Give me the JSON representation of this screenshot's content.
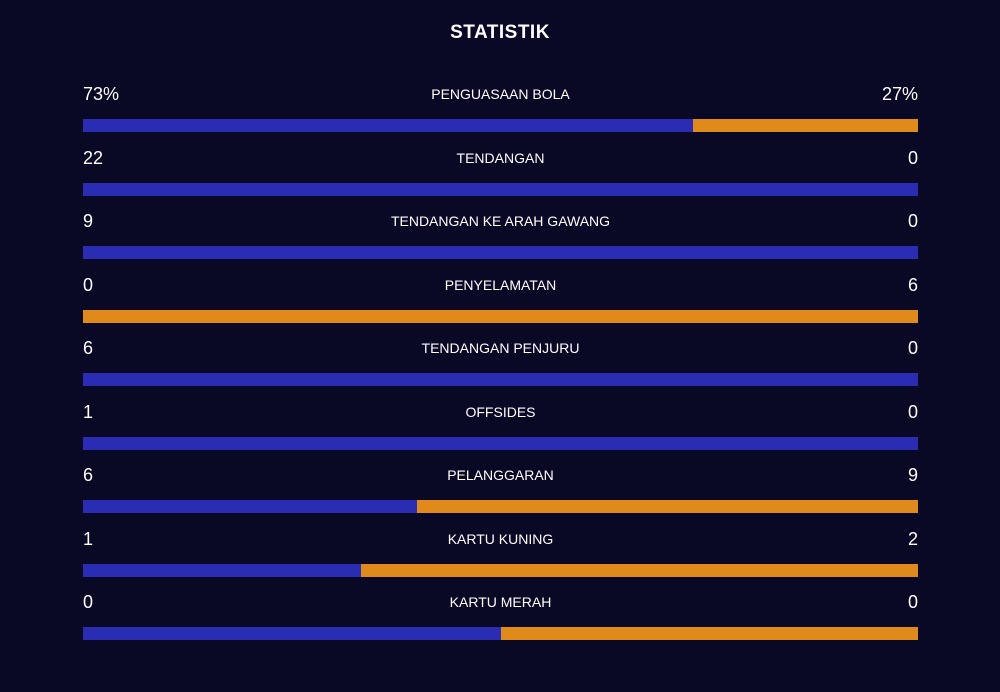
{
  "title": "STATISTIK",
  "colors": {
    "background": "#090825",
    "home": "#2a2cb4",
    "away": "#e08a1c"
  },
  "stats": [
    {
      "label": "PENGUASAAN BOLA",
      "home_text": "73%",
      "away_text": "27%",
      "home_share": 0.73
    },
    {
      "label": "TENDANGAN",
      "home_text": "22",
      "away_text": "0",
      "home_share": 1.0
    },
    {
      "label": "TENDANGAN KE ARAH GAWANG",
      "home_text": "9",
      "away_text": "0",
      "home_share": 1.0
    },
    {
      "label": "PENYELAMATAN",
      "home_text": "0",
      "away_text": "6",
      "home_share": 0.0
    },
    {
      "label": "TENDANGAN PENJURU",
      "home_text": "6",
      "away_text": "0",
      "home_share": 1.0
    },
    {
      "label": "OFFSIDES",
      "home_text": "1",
      "away_text": "0",
      "home_share": 1.0
    },
    {
      "label": "PELANGGARAN",
      "home_text": "6",
      "away_text": "9",
      "home_share": 0.4
    },
    {
      "label": "KARTU KUNING",
      "home_text": "1",
      "away_text": "2",
      "home_share": 0.333
    },
    {
      "label": "KARTU MERAH",
      "home_text": "0",
      "away_text": "0",
      "home_share": 0.5
    }
  ]
}
